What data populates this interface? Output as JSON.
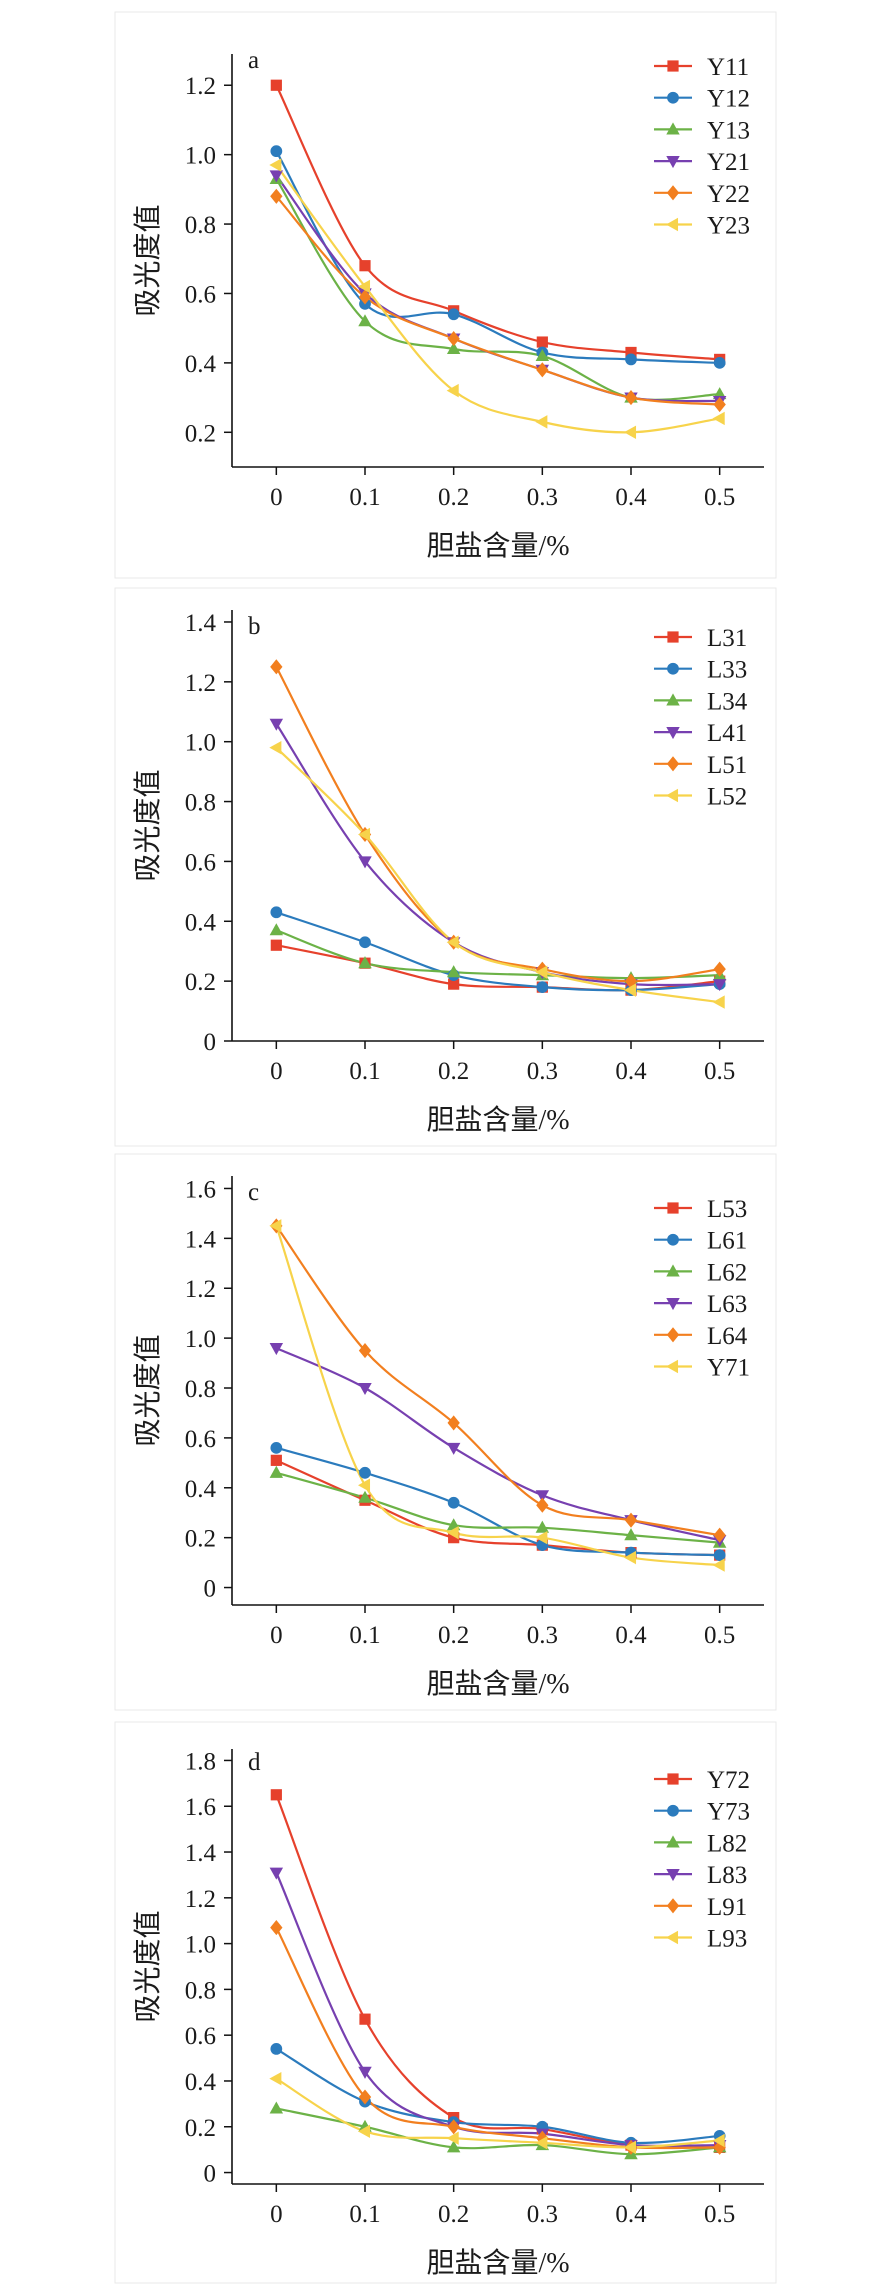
{
  "chart_data": [
    {
      "type": "line",
      "line_style": "smooth",
      "panel_label": "a",
      "xlabel": "胆盐含量/%",
      "ylabel": "吸光度值",
      "x": [
        0,
        0.1,
        0.2,
        0.3,
        0.4,
        0.5
      ],
      "x_ticks": [
        "0",
        "0.1",
        "0.2",
        "0.3",
        "0.4",
        "0.5"
      ],
      "y_ticks": [
        "0.2",
        "0.4",
        "0.6",
        "0.8",
        "1.0",
        "1.2"
      ],
      "xlim": [
        -0.05,
        0.55
      ],
      "ylim": [
        0.1,
        1.29
      ],
      "grid": false,
      "legend": "top-right",
      "series": [
        {
          "name": "Y11",
          "color": "#e6412c",
          "marker": "square",
          "values": [
            1.2,
            0.68,
            0.55,
            0.46,
            0.43,
            0.41
          ]
        },
        {
          "name": "Y12",
          "color": "#2b7bbd",
          "marker": "circle",
          "values": [
            1.01,
            0.57,
            0.54,
            0.43,
            0.41,
            0.4
          ]
        },
        {
          "name": "Y13",
          "color": "#6cb247",
          "marker": "triangle-up",
          "values": [
            0.93,
            0.52,
            0.44,
            0.42,
            0.3,
            0.31
          ]
        },
        {
          "name": "Y21",
          "color": "#7740b0",
          "marker": "triangle-down",
          "values": [
            0.94,
            0.6,
            0.47,
            0.38,
            0.3,
            0.29
          ]
        },
        {
          "name": "Y22",
          "color": "#f27f1f",
          "marker": "diamond",
          "values": [
            0.88,
            0.59,
            0.47,
            0.38,
            0.3,
            0.28
          ]
        },
        {
          "name": "Y23",
          "color": "#f7d34b",
          "marker": "triangle-left",
          "values": [
            0.97,
            0.62,
            0.32,
            0.23,
            0.2,
            0.24
          ]
        }
      ]
    },
    {
      "type": "line",
      "line_style": "smooth",
      "panel_label": "b",
      "xlabel": "胆盐含量/%",
      "ylabel": "吸光度值",
      "x": [
        0,
        0.1,
        0.2,
        0.3,
        0.4,
        0.5
      ],
      "x_ticks": [
        "0",
        "0.1",
        "0.2",
        "0.3",
        "0.4",
        "0.5"
      ],
      "y_ticks": [
        "0",
        "0.2",
        "0.4",
        "0.6",
        "0.8",
        "1.0",
        "1.2",
        "1.4"
      ],
      "xlim": [
        -0.05,
        0.55
      ],
      "ylim": [
        0,
        1.44
      ],
      "grid": false,
      "legend": "top-right",
      "series": [
        {
          "name": "L31",
          "color": "#e6412c",
          "marker": "square",
          "values": [
            0.32,
            0.26,
            0.19,
            0.18,
            0.17,
            0.2
          ]
        },
        {
          "name": "L33",
          "color": "#2b7bbd",
          "marker": "circle",
          "values": [
            0.43,
            0.33,
            0.22,
            0.18,
            0.17,
            0.19
          ]
        },
        {
          "name": "L34",
          "color": "#6cb247",
          "marker": "triangle-up",
          "values": [
            0.37,
            0.26,
            0.23,
            0.22,
            0.21,
            0.22
          ]
        },
        {
          "name": "L41",
          "color": "#7740b0",
          "marker": "triangle-down",
          "values": [
            1.06,
            0.6,
            0.33,
            0.23,
            0.19,
            0.19
          ]
        },
        {
          "name": "L51",
          "color": "#f27f1f",
          "marker": "diamond",
          "values": [
            1.25,
            0.69,
            0.33,
            0.24,
            0.2,
            0.24
          ]
        },
        {
          "name": "L52",
          "color": "#f7d34b",
          "marker": "triangle-left",
          "values": [
            0.98,
            0.69,
            0.33,
            0.23,
            0.17,
            0.13
          ]
        }
      ]
    },
    {
      "type": "line",
      "line_style": "smooth",
      "panel_label": "c",
      "xlabel": "胆盐含量/%",
      "ylabel": "吸光度值",
      "x": [
        0,
        0.1,
        0.2,
        0.3,
        0.4,
        0.5
      ],
      "x_ticks": [
        "0",
        "0.1",
        "0.2",
        "0.3",
        "0.4",
        "0.5"
      ],
      "y_ticks": [
        "0",
        "0.2",
        "0.4",
        "0.6",
        "0.8",
        "1.0",
        "1.2",
        "1.4",
        "1.6"
      ],
      "xlim": [
        -0.05,
        0.55
      ],
      "ylim": [
        -0.07,
        1.65
      ],
      "grid": false,
      "legend": "top-right",
      "series": [
        {
          "name": "L53",
          "color": "#e6412c",
          "marker": "square",
          "values": [
            0.51,
            0.35,
            0.2,
            0.17,
            0.14,
            0.13
          ]
        },
        {
          "name": "L61",
          "color": "#2b7bbd",
          "marker": "circle",
          "values": [
            0.56,
            0.46,
            0.34,
            0.17,
            0.14,
            0.13
          ]
        },
        {
          "name": "L62",
          "color": "#6cb247",
          "marker": "triangle-up",
          "values": [
            0.46,
            0.36,
            0.25,
            0.24,
            0.21,
            0.18
          ]
        },
        {
          "name": "L63",
          "color": "#7740b0",
          "marker": "triangle-down",
          "values": [
            0.96,
            0.8,
            0.56,
            0.37,
            0.27,
            0.19
          ]
        },
        {
          "name": "L64",
          "color": "#f27f1f",
          "marker": "diamond",
          "values": [
            1.45,
            0.95,
            0.66,
            0.33,
            0.27,
            0.21
          ]
        },
        {
          "name": "Y71",
          "color": "#f7d34b",
          "marker": "triangle-left",
          "values": [
            1.45,
            0.41,
            0.22,
            0.2,
            0.12,
            0.09
          ]
        }
      ]
    },
    {
      "type": "line",
      "line_style": "smooth",
      "panel_label": "d",
      "xlabel": "胆盐含量/%",
      "ylabel": "吸光度值",
      "x": [
        0,
        0.1,
        0.2,
        0.3,
        0.4,
        0.5
      ],
      "x_ticks": [
        "0",
        "0.1",
        "0.2",
        "0.3",
        "0.4",
        "0.5"
      ],
      "y_ticks": [
        "0",
        "0.2",
        "0.4",
        "0.6",
        "0.8",
        "1.0",
        "1.2",
        "1.4",
        "1.6",
        "1.8"
      ],
      "xlim": [
        -0.05,
        0.55
      ],
      "ylim": [
        -0.05,
        1.85
      ],
      "grid": false,
      "legend": "top-right",
      "series": [
        {
          "name": "Y72",
          "color": "#e6412c",
          "marker": "square",
          "values": [
            1.65,
            0.67,
            0.24,
            0.19,
            0.12,
            0.11
          ]
        },
        {
          "name": "Y73",
          "color": "#2b7bbd",
          "marker": "circle",
          "values": [
            0.54,
            0.31,
            0.22,
            0.2,
            0.13,
            0.16
          ]
        },
        {
          "name": "L82",
          "color": "#6cb247",
          "marker": "triangle-up",
          "values": [
            0.28,
            0.2,
            0.11,
            0.12,
            0.08,
            0.11
          ]
        },
        {
          "name": "L83",
          "color": "#7740b0",
          "marker": "triangle-down",
          "values": [
            1.31,
            0.44,
            0.2,
            0.17,
            0.12,
            0.12
          ]
        },
        {
          "name": "L91",
          "color": "#f27f1f",
          "marker": "diamond",
          "values": [
            1.07,
            0.33,
            0.2,
            0.15,
            0.11,
            0.11
          ]
        },
        {
          "name": "L93",
          "color": "#f7d34b",
          "marker": "triangle-left",
          "values": [
            0.41,
            0.18,
            0.15,
            0.13,
            0.11,
            0.14
          ]
        }
      ]
    }
  ]
}
